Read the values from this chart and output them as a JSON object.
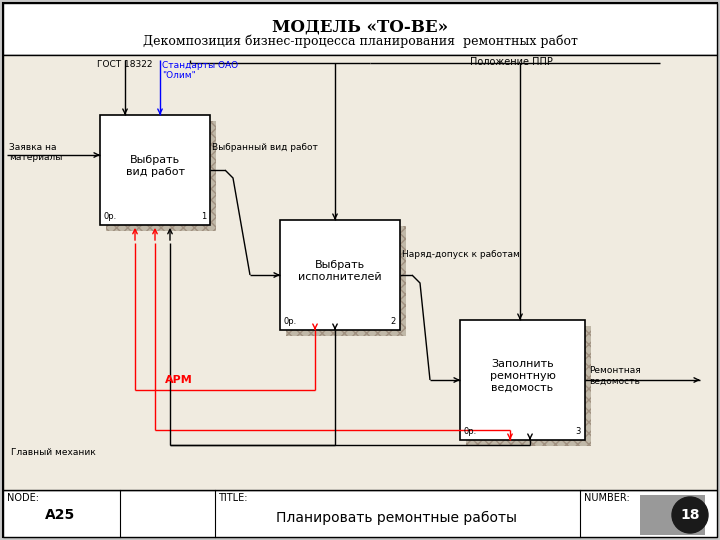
{
  "title_line1": "МОДЕЛЬ «ТО-BE»",
  "title_line2": "Декомпозиция бизнес-процесса планирования  ремонтных работ",
  "bg_color": "#f0ebe0",
  "outer_bg": "#c8c8c8",
  "footer_bg": "#ffffff",
  "box_fill": "#ffffff",
  "shadow_color": "#c0b8a8",
  "footer_node": "A25",
  "footer_title": "Планировать ремонтные работы",
  "label_zayavka": "Заявка на\nматериалы",
  "label_gost": "ГОСТ 18322",
  "label_standart": "Стандарты ОАО\n\"Олим\"",
  "label_polojenie": "Положение ППР",
  "label_vybr_vid": "Выбранный вид работ",
  "label_naryad": "Наряд-допуск к работам",
  "label_rem_ved": "Ремонтная\nведомость",
  "label_arm": "АРМ",
  "label_glav_meh": "Главный механик",
  "box1_label": "Выбрать\nвид работ",
  "box1_num": "0р.",
  "box1_n": "1",
  "box2_label": "Выбрать\nисполнителей",
  "box2_num": "0р.",
  "box2_n": "2",
  "box3_label": "Заполнить\nремонтную\nведомость",
  "box3_num": "0р.",
  "box3_n": "3"
}
